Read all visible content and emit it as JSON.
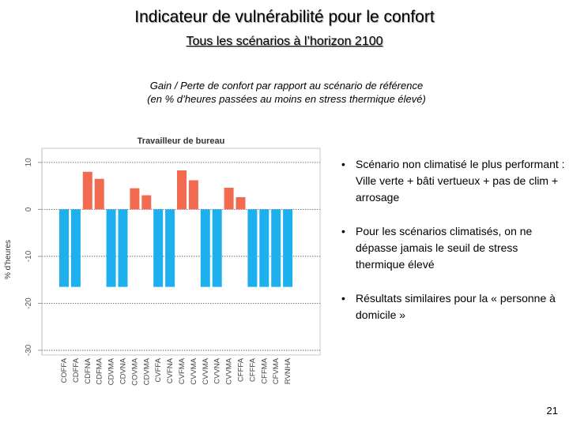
{
  "slide": {
    "title": "Indicateur de vulnérabilité pour le confort",
    "subtitle": "Tous les scénarios à l’horizon 2100",
    "caption_line1": "Gain / Perte de confort par rapport au scénario de référence",
    "caption_line2": "(en % d’heures passées au moins en stress thermique élevé)",
    "page_number": "21"
  },
  "bullets": [
    "Scénario non climatisé le plus performant : Ville verte + bâti vertueux + pas de clim + arrosage",
    "Pour les scénarios climatisés, on ne dépasse jamais le seuil de stress thermique élevé",
    "Résultats similaires pour la « personne à domicile »"
  ],
  "colors": {
    "positive": "#f26a4f",
    "negative": "#1eb0ee"
  },
  "chart_data": {
    "type": "bar",
    "title": "Travailleur de bureau",
    "ylabel": "% d’heures",
    "xlabel": "",
    "ylim": [
      -31,
      13
    ],
    "yticks": [
      10,
      0,
      -10,
      -20,
      -30
    ],
    "grid": true,
    "categories": [
      "COFFA",
      "CDFFA",
      "CDFNA",
      "CDFMA",
      "CDVMA",
      "CDVNA",
      "COVMA",
      "CDVMA",
      "CVFFA",
      "CVFNA",
      "CVFMA",
      "CVVMA",
      "CVVMA",
      "CVVNA",
      "CVVMA",
      "CFFFA",
      "CFFFA",
      "CFFMA",
      "CFVMA",
      "RVNHA"
    ],
    "values": [
      -16.5,
      -16.5,
      8.0,
      6.5,
      -16.5,
      -16.5,
      4.5,
      3.0,
      -16.5,
      -16.5,
      8.3,
      6.2,
      -16.5,
      -16.5,
      4.6,
      2.6,
      -16.5,
      -16.5,
      -16.5,
      -16.5
    ]
  }
}
